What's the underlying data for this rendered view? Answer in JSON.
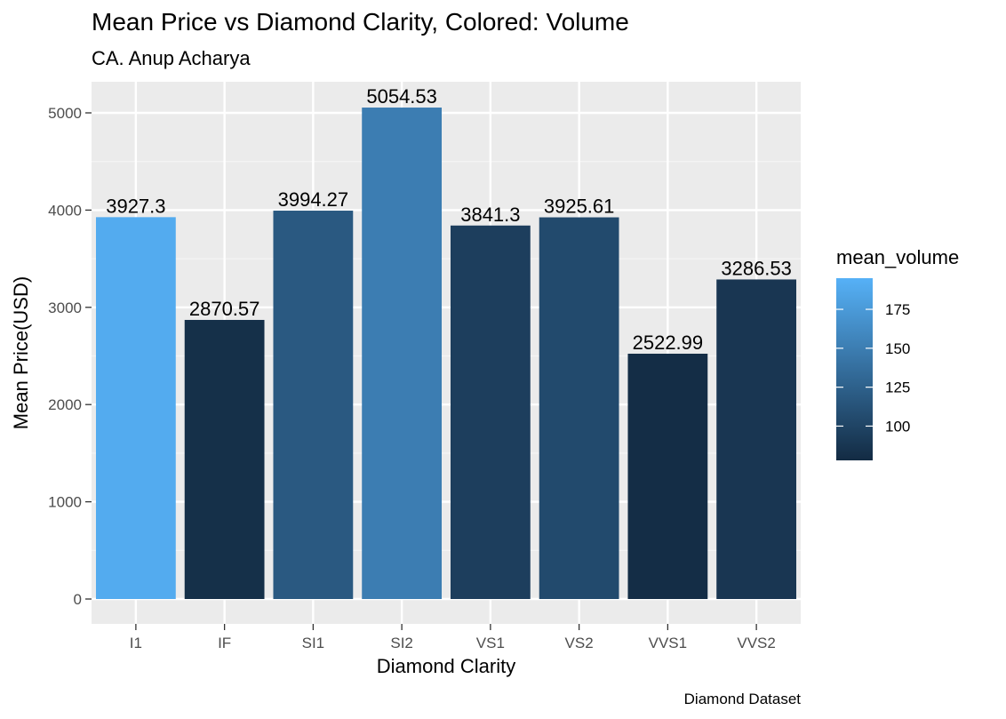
{
  "chart_data": {
    "type": "bar",
    "title": "Mean Price vs Diamond Clarity, Colored: Volume",
    "subtitle": "CA. Anup Acharya",
    "xlabel": "Diamond Clarity",
    "ylabel": "Mean Price(USD)",
    "caption": "Diamond Dataset",
    "categories": [
      "I1",
      "IF",
      "SI1",
      "SI2",
      "VS1",
      "VS2",
      "VVS1",
      "VVS2"
    ],
    "values": [
      3927.3,
      2870.57,
      3994.27,
      5054.53,
      3841.3,
      3925.61,
      2522.99,
      3286.53
    ],
    "value_labels": [
      "3927.3",
      "2870.57",
      "3994.27",
      "5054.53",
      "3841.3",
      "3925.61",
      "2522.99",
      "3286.53"
    ],
    "color_values": [
      190,
      82,
      118,
      150,
      95,
      105,
      80,
      88
    ],
    "ylim": [
      0,
      5300
    ],
    "yticks": [
      0,
      1000,
      2000,
      3000,
      4000,
      5000
    ],
    "grid": true,
    "legend": {
      "title": "mean_volume",
      "position": "right",
      "ticks": [
        100,
        125,
        150,
        175
      ],
      "range": [
        78,
        195
      ],
      "color_low": "#132b43",
      "color_high": "#56b1f7"
    },
    "colors": {
      "panel_background": "#ebebeb",
      "grid_major": "#ffffff",
      "grid_minor": "#f5f5f5"
    }
  }
}
